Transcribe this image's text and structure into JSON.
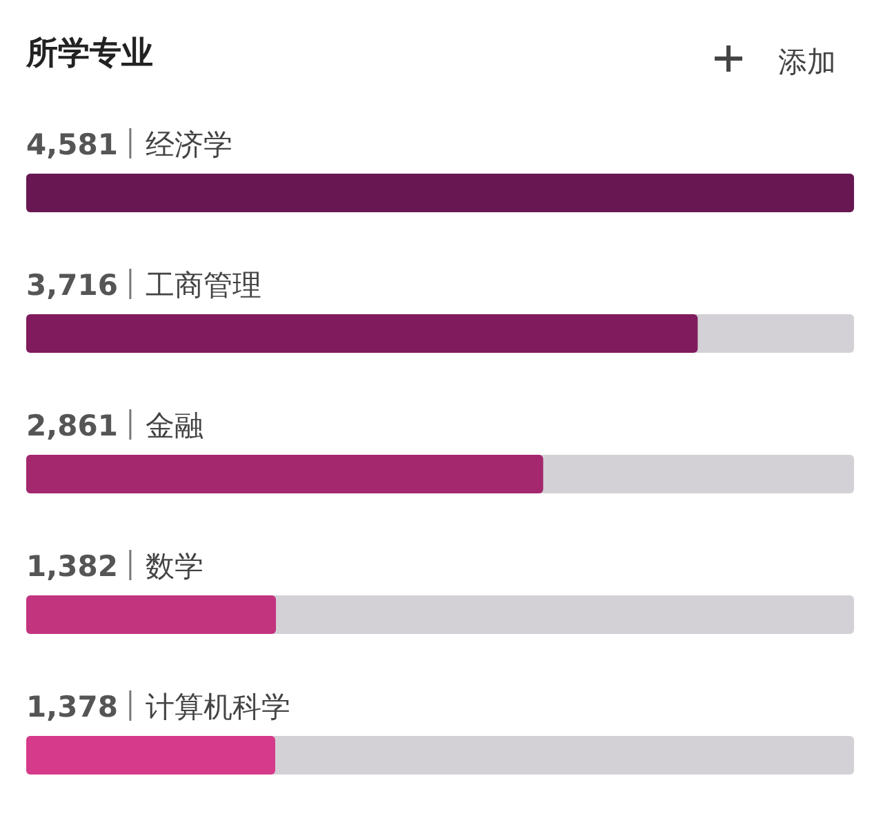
{
  "chart_data": {
    "type": "bar",
    "orientation": "horizontal",
    "title": "所学专业",
    "annotations": [
      "添加"
    ],
    "categories": [
      "经济学",
      "工商管理",
      "金融",
      "数学",
      "计算机科学"
    ],
    "values": [
      4581,
      3716,
      2861,
      1382,
      1378
    ],
    "value_labels": [
      "4,581",
      "3,716",
      "2,861",
      "1,382",
      "1,378"
    ],
    "colors": [
      "#681752",
      "#801b5e",
      "#a3286e",
      "#c3347f",
      "#d63a8a"
    ],
    "xlim": [
      0,
      4581
    ],
    "tick_labels": false
  }
}
